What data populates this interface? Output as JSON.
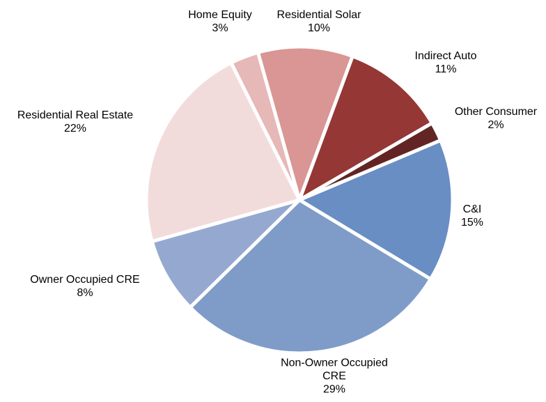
{
  "chart_data": {
    "type": "pie",
    "categories": [
      "Home Equity",
      "Residential Solar",
      "Indirect Auto",
      "Other Consumer",
      "C&I",
      "Non-Owner Occupied CRE",
      "Owner Occupied CRE",
      "Residential Real Estate"
    ],
    "values": [
      3,
      10,
      11,
      2,
      15,
      29,
      8,
      22
    ],
    "value_labels": [
      "3%",
      "10%",
      "11%",
      "2%",
      "15%",
      "29%",
      "8%",
      "22%"
    ],
    "colors": [
      "#e6b8b7",
      "#d99694",
      "#953735",
      "#632523",
      "#688ec4",
      "#7f9cc9",
      "#95a9d0",
      "#f2dcdb"
    ]
  }
}
